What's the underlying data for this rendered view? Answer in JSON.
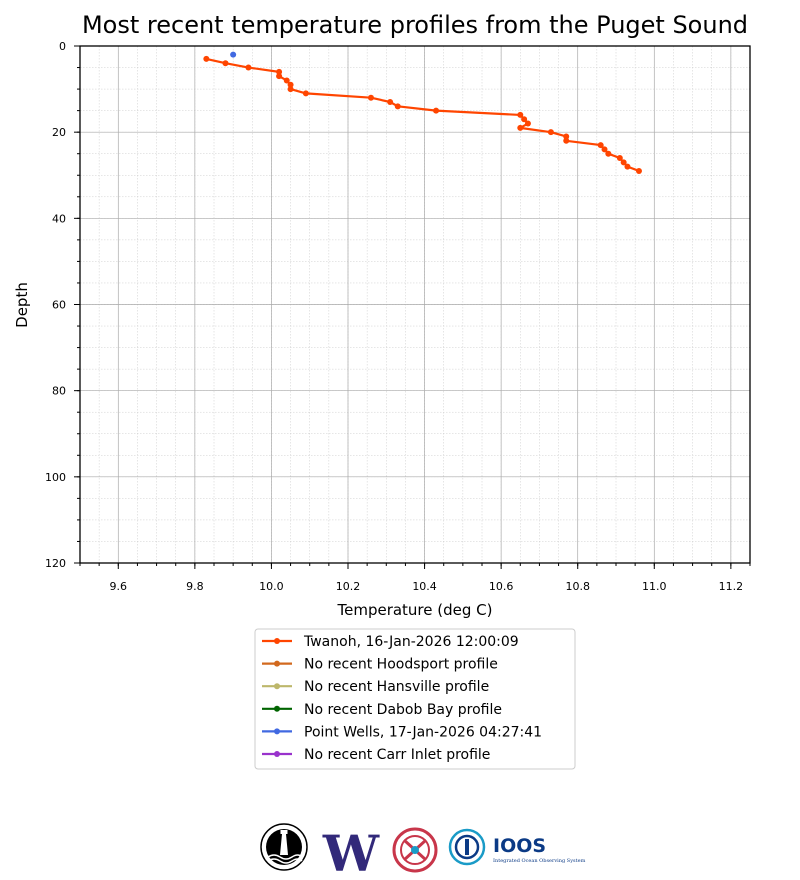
{
  "chart_data": {
    "type": "line",
    "title": "Most recent temperature profiles from the Puget Sound",
    "xlabel": "Temperature (deg C)",
    "ylabel": "Depth",
    "xlim": [
      9.5,
      11.25
    ],
    "ylim": [
      0,
      120
    ],
    "y_inverted": true,
    "xticks": [
      9.6,
      9.8,
      10.0,
      10.2,
      10.4,
      10.6,
      10.8,
      11.0,
      11.2
    ],
    "yticks": [
      0,
      20,
      40,
      60,
      80,
      100,
      120
    ],
    "grid": true,
    "legend_position": "bottom",
    "series": [
      {
        "name": "Twanoh, 16-Jan-2026 12:00:09",
        "color": "#ff4500",
        "points": [
          [
            9.83,
            3
          ],
          [
            9.88,
            4
          ],
          [
            9.94,
            5
          ],
          [
            10.02,
            6
          ],
          [
            10.02,
            7
          ],
          [
            10.04,
            8
          ],
          [
            10.05,
            9
          ],
          [
            10.05,
            10
          ],
          [
            10.09,
            11
          ],
          [
            10.26,
            12
          ],
          [
            10.31,
            13
          ],
          [
            10.33,
            14
          ],
          [
            10.43,
            15
          ],
          [
            10.65,
            16
          ],
          [
            10.66,
            17
          ],
          [
            10.67,
            18
          ],
          [
            10.65,
            19
          ],
          [
            10.73,
            20
          ],
          [
            10.77,
            21
          ],
          [
            10.77,
            22
          ],
          [
            10.86,
            23
          ],
          [
            10.87,
            24
          ],
          [
            10.88,
            25
          ],
          [
            10.91,
            26
          ],
          [
            10.92,
            27
          ],
          [
            10.93,
            28
          ],
          [
            10.96,
            29
          ]
        ]
      },
      {
        "name": "No recent Hoodsport profile",
        "color": "#d2691e",
        "points": []
      },
      {
        "name": "No recent Hansville profile",
        "color": "#bdb76b",
        "points": []
      },
      {
        "name": "No recent Dabob Bay profile",
        "color": "#006400",
        "points": []
      },
      {
        "name": "Point Wells, 17-Jan-2026 04:27:41",
        "color": "#4169e1",
        "points": [
          [
            9.9,
            2
          ]
        ]
      },
      {
        "name": "No recent Carr Inlet profile",
        "color": "#9932cc",
        "points": []
      }
    ]
  },
  "logos": [
    {
      "icon": "lighthouse-seal-logo"
    },
    {
      "icon": "uw-logo",
      "text": "W",
      "color": "#32297a"
    },
    {
      "icon": "knot-emblem-logo",
      "color": "#c8364a"
    },
    {
      "icon": "ioos-logo",
      "text": "IOOS",
      "subtext": "Integrated Ocean Observing System",
      "color": "#0b3a85",
      "ring_color": "#1a9bc7"
    }
  ]
}
